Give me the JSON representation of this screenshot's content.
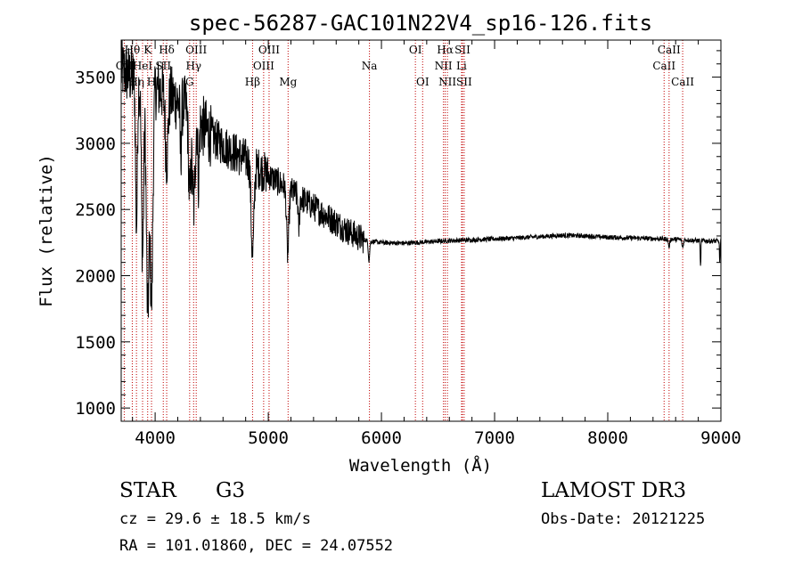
{
  "chart_data": {
    "type": "line",
    "title": "spec-56287-GAC101N22V4_sp16-126.fits",
    "xlabel": "Wavelength (Å)",
    "ylabel": "Flux (relative)",
    "xlim": [
      3700,
      9000
    ],
    "ylim": [
      900,
      3780
    ],
    "xticks": [
      4000,
      5000,
      6000,
      7000,
      8000,
      9000
    ],
    "yticks": [
      1000,
      1500,
      2000,
      2500,
      3000,
      3500
    ],
    "grid": false,
    "line_color": "#000000",
    "marker_color": "#c00000",
    "continuum": [
      [
        3700,
        3550
      ],
      [
        3800,
        3500
      ],
      [
        3900,
        3450
      ],
      [
        4000,
        3420
      ],
      [
        4100,
        3380
      ],
      [
        4200,
        3320
      ],
      [
        4300,
        3250
      ],
      [
        4400,
        3150
      ],
      [
        4500,
        3050
      ],
      [
        4600,
        2990
      ],
      [
        4700,
        2930
      ],
      [
        4800,
        2880
      ],
      [
        4900,
        2820
      ],
      [
        5000,
        2760
      ],
      [
        5100,
        2700
      ],
      [
        5200,
        2640
      ],
      [
        5300,
        2580
      ],
      [
        5400,
        2520
      ],
      [
        5500,
        2460
      ],
      [
        5600,
        2400
      ],
      [
        5700,
        2340
      ],
      [
        5800,
        2290
      ],
      [
        5850,
        2270
      ],
      [
        5900,
        2260
      ],
      [
        6000,
        2250
      ],
      [
        6200,
        2245
      ],
      [
        6400,
        2255
      ],
      [
        6600,
        2265
      ],
      [
        6800,
        2270
      ],
      [
        7000,
        2278
      ],
      [
        7200,
        2285
      ],
      [
        7400,
        2295
      ],
      [
        7600,
        2305
      ],
      [
        7800,
        2300
      ],
      [
        8000,
        2290
      ],
      [
        8200,
        2285
      ],
      [
        8400,
        2280
      ],
      [
        8600,
        2275
      ],
      [
        8800,
        2265
      ],
      [
        9000,
        2260
      ]
    ],
    "absorption_features": [
      {
        "center": 3835,
        "depth": 1100,
        "width": 8
      },
      {
        "center": 3889,
        "depth": 1300,
        "width": 10
      },
      {
        "center": 3934,
        "depth": 1700,
        "width": 12
      },
      {
        "center": 3968,
        "depth": 1600,
        "width": 12
      },
      {
        "center": 4102,
        "depth": 500,
        "width": 12
      },
      {
        "center": 4226,
        "depth": 400,
        "width": 6
      },
      {
        "center": 4305,
        "depth": 650,
        "width": 10
      },
      {
        "center": 4340,
        "depth": 700,
        "width": 12
      },
      {
        "center": 4384,
        "depth": 450,
        "width": 6
      },
      {
        "center": 4861,
        "depth": 700,
        "width": 12
      },
      {
        "center": 5172,
        "depth": 500,
        "width": 10
      },
      {
        "center": 5270,
        "depth": 250,
        "width": 6
      },
      {
        "center": 5890,
        "depth": 150,
        "width": 6
      },
      {
        "center": 8542,
        "depth": 60,
        "width": 6
      },
      {
        "center": 8662,
        "depth": 60,
        "width": 6
      },
      {
        "center": 8820,
        "depth": 200,
        "width": 3
      },
      {
        "center": 8990,
        "depth": 160,
        "width": 3
      }
    ],
    "line_markers": [
      {
        "wave": 3727,
        "label": "OII",
        "row": 1
      },
      {
        "wave": 3798,
        "label": "Hθ",
        "row": 0
      },
      {
        "wave": 3835,
        "label": "Hη",
        "row": 2
      },
      {
        "wave": 3889,
        "label": "HeI",
        "row": 1
      },
      {
        "wave": 3934,
        "label": "K",
        "row": 0
      },
      {
        "wave": 3968,
        "label": "H",
        "row": 2
      },
      {
        "wave": 4072,
        "label": "SII",
        "row": 1
      },
      {
        "wave": 4102,
        "label": "Hδ",
        "row": 0
      },
      {
        "wave": 4305,
        "label": "G",
        "row": 2
      },
      {
        "wave": 4340,
        "label": "Hγ",
        "row": 1
      },
      {
        "wave": 4363,
        "label": "OIII",
        "row": 0
      },
      {
        "wave": 4861,
        "label": "Hβ",
        "row": 2
      },
      {
        "wave": 4959,
        "label": "OIII",
        "row": 1
      },
      {
        "wave": 5007,
        "label": "OIII",
        "row": 0
      },
      {
        "wave": 5175,
        "label": "Mg",
        "row": 2
      },
      {
        "wave": 5894,
        "label": "Na",
        "row": 1
      },
      {
        "wave": 6300,
        "label": "OI",
        "row": 0
      },
      {
        "wave": 6364,
        "label": "OI",
        "row": 2
      },
      {
        "wave": 6548,
        "label": "NII",
        "row": 1
      },
      {
        "wave": 6563,
        "label": "Hα",
        "row": 0
      },
      {
        "wave": 6583,
        "label": "NII",
        "row": 2
      },
      {
        "wave": 6708,
        "label": "Li",
        "row": 1
      },
      {
        "wave": 6716,
        "label": "SII",
        "row": 0
      },
      {
        "wave": 6731,
        "label": "SII",
        "row": 2
      },
      {
        "wave": 8498,
        "label": "CaII",
        "row": 1
      },
      {
        "wave": 8542,
        "label": "CaII",
        "row": 0
      },
      {
        "wave": 8662,
        "label": "CaII",
        "row": 2
      }
    ]
  },
  "info": {
    "class_text": "STAR",
    "subclass_text": "G3",
    "survey": "LAMOST DR3",
    "cz_line": "cz = 29.6 ± 18.5 km/s",
    "obs_date_line": "Obs-Date: 20121225",
    "coords_line": "RA = 101.01860, DEC =  24.07552"
  }
}
